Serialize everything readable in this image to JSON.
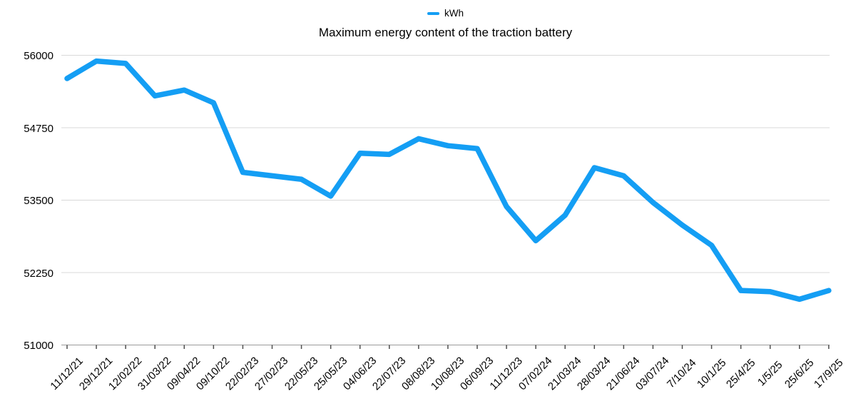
{
  "chart_data": {
    "type": "line",
    "title": "Maximum energy content of the traction battery",
    "legend_position": "top-center",
    "grid": "horizontal",
    "xlabel": "",
    "ylabel": "",
    "ylim": [
      51000,
      56000
    ],
    "yticks": [
      51000,
      52250,
      53500,
      54750,
      56000
    ],
    "categories": [
      "11/12/21",
      "29/12/21",
      "12/02/22",
      "31/03/22",
      "09/04/22",
      "09/10/22",
      "22/02/23",
      "27/02/23",
      "22/05/23",
      "25/05/23",
      "04/06/23",
      "22/07/23",
      "08/08/23",
      "10/08/23",
      "06/09/23",
      "11/12/23",
      "07/02/24",
      "21/03/24",
      "28/03/24",
      "21/06/24",
      "03/07/24",
      "7/10/24",
      "10/1/25",
      "25/4/25",
      "1/5/25",
      "25/6/25",
      "17/9/25"
    ],
    "series": [
      {
        "name": "kWh",
        "values": [
          55600,
          55900,
          55860,
          55300,
          55400,
          55180,
          53980,
          53920,
          53860,
          53570,
          54310,
          54290,
          54560,
          54440,
          54390,
          53390,
          52800,
          53240,
          54060,
          53920,
          53460,
          53070,
          52720,
          51940,
          51920,
          51790,
          51940
        ]
      }
    ],
    "colors": {
      "line": "#149EF4",
      "gridline": "#D9D9D9",
      "axis_line": "#9B9B9B",
      "tick": "#4D4D4D",
      "text": "#000000"
    }
  }
}
